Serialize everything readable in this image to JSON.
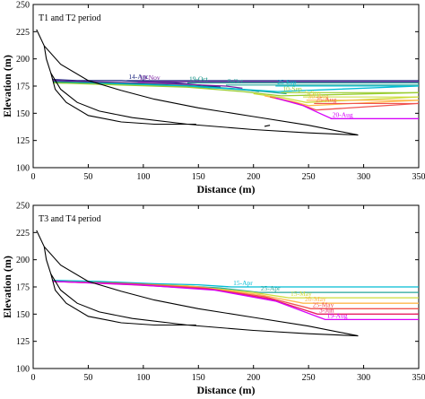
{
  "chart_data": [
    {
      "type": "line",
      "title": "T1 and T2 period",
      "xlabel": "Distance (m)",
      "ylabel": "Elevation (m)",
      "xlim": [
        0,
        350
      ],
      "ylim": [
        100,
        250
      ],
      "xticks": [
        0,
        50,
        100,
        150,
        200,
        250,
        300,
        350
      ],
      "yticks": [
        100,
        125,
        150,
        175,
        200,
        225,
        250
      ],
      "grid": false,
      "legend": "none (inline labels)",
      "profiles": [
        {
          "color": "#000000",
          "points": [
            [
              3,
              227
            ],
            [
              10,
              212
            ],
            [
              25,
              195
            ],
            [
              50,
              180
            ],
            [
              80,
              171
            ],
            [
              110,
              163
            ],
            [
              150,
              155
            ],
            [
              200,
              147
            ],
            [
              250,
              139
            ],
            [
              295,
              130
            ]
          ]
        },
        {
          "color": "#000000",
          "points": [
            [
              10,
              212
            ],
            [
              12,
              200
            ],
            [
              16,
              187
            ],
            [
              25,
              172
            ],
            [
              40,
              160
            ],
            [
              60,
              152
            ],
            [
              90,
              146
            ],
            [
              140,
              140
            ],
            [
              200,
              135
            ],
            [
              250,
              132
            ],
            [
              295,
              130
            ]
          ]
        },
        {
          "color": "#000000",
          "points": [
            [
              16,
              187
            ],
            [
              20,
              172
            ],
            [
              30,
              160
            ],
            [
              50,
              148
            ],
            [
              80,
              142
            ],
            [
              110,
              140
            ],
            [
              148,
              140
            ]
          ]
        },
        {
          "color": "#000000",
          "points": [
            [
              210,
              138
            ],
            [
              215,
              139
            ]
          ]
        }
      ],
      "series": [
        {
          "name": "14-Apr",
          "color": "#1a237e",
          "level": 180,
          "x_from": 85,
          "points": [
            [
              18,
              181
            ],
            [
              40,
              180
            ],
            [
              80,
              180
            ],
            [
              100,
              179
            ],
            [
              130,
              178
            ],
            [
              170,
              174
            ]
          ]
        },
        {
          "name": "19-Nov",
          "color": "#7b1fa2",
          "level": 179,
          "x_from": 95,
          "points": [
            [
              18,
              180
            ],
            [
              50,
              179
            ],
            [
              90,
              178
            ],
            [
              130,
              177
            ],
            [
              175,
              175
            ],
            [
              190,
              173
            ]
          ]
        },
        {
          "name": "19-Oct",
          "color": "#00897b",
          "level": 178,
          "x_from": 140,
          "points": [
            [
              18,
              179
            ],
            [
              60,
              178
            ],
            [
              100,
              177
            ],
            [
              150,
              175
            ],
            [
              190,
              172
            ],
            [
              205,
              170
            ]
          ]
        },
        {
          "name": "9-Oct",
          "color": "#26a69a",
          "level": 176,
          "x_from": 175,
          "points": [
            [
              18,
              178
            ],
            [
              70,
              177
            ],
            [
              120,
              175
            ],
            [
              170,
              173
            ],
            [
              210,
              170
            ],
            [
              230,
              168
            ]
          ]
        },
        {
          "name": "25-Sep",
          "color": "#00bcd4",
          "level": 175,
          "x_from": 220,
          "points": [
            [
              18,
              178
            ],
            [
              80,
              177
            ],
            [
              140,
              175
            ],
            [
              190,
              172
            ],
            [
              222,
              170
            ],
            [
              350,
              175
            ]
          ]
        },
        {
          "name": "10-Sep",
          "color": "#9acd32",
          "level": 169,
          "x_from": 225,
          "points": [
            [
              18,
              178
            ],
            [
              80,
              176
            ],
            [
              140,
              174
            ],
            [
              190,
              170
            ],
            [
              225,
              166
            ],
            [
              350,
              169
            ]
          ]
        },
        {
          "name": "5-Sep",
          "color": "#cddc39",
          "level": 165,
          "x_from": 245,
          "points": [
            [
              200,
              168
            ],
            [
              228,
              164
            ],
            [
              248,
              160
            ],
            [
              350,
              165
            ]
          ]
        },
        {
          "name": "30-Aug",
          "color": "#ffb74d",
          "level": 162,
          "x_from": 248,
          "points": [
            [
              210,
              166
            ],
            [
              235,
              161
            ],
            [
              250,
              157
            ],
            [
              350,
              162
            ]
          ]
        },
        {
          "name": "25-Aug",
          "color": "#ef5350",
          "level": 159,
          "x_from": 255,
          "points": [
            [
              215,
              165
            ],
            [
              240,
              159
            ],
            [
              257,
              153
            ],
            [
              350,
              159
            ]
          ]
        },
        {
          "name": "20-Aug",
          "color": "#d500f9",
          "level": 145,
          "x_from": 270,
          "points": [
            [
              220,
              164
            ],
            [
              245,
              157
            ],
            [
              260,
              150
            ],
            [
              271,
              145
            ],
            [
              350,
              145
            ]
          ]
        }
      ]
    },
    {
      "type": "line",
      "title": "T3 and T4 period",
      "xlabel": "Distance (m)",
      "ylabel": "Elevation (m)",
      "xlim": [
        0,
        350
      ],
      "ylim": [
        100,
        250
      ],
      "xticks": [
        0,
        50,
        100,
        150,
        200,
        250,
        300,
        350
      ],
      "yticks": [
        100,
        125,
        150,
        175,
        200,
        225,
        250
      ],
      "grid": false,
      "legend": "none (inline labels)",
      "profiles": [
        {
          "color": "#000000",
          "points": [
            [
              3,
              227
            ],
            [
              10,
              212
            ],
            [
              25,
              195
            ],
            [
              50,
              180
            ],
            [
              80,
              171
            ],
            [
              110,
              163
            ],
            [
              150,
              155
            ],
            [
              200,
              147
            ],
            [
              250,
              139
            ],
            [
              295,
              130
            ]
          ]
        },
        {
          "color": "#000000",
          "points": [
            [
              10,
              212
            ],
            [
              12,
              200
            ],
            [
              16,
              187
            ],
            [
              25,
              172
            ],
            [
              40,
              160
            ],
            [
              60,
              152
            ],
            [
              90,
              146
            ],
            [
              140,
              140
            ],
            [
              200,
              135
            ],
            [
              250,
              132
            ],
            [
              295,
              130
            ]
          ]
        },
        {
          "color": "#000000",
          "points": [
            [
              16,
              187
            ],
            [
              20,
              172
            ],
            [
              30,
              160
            ],
            [
              50,
              148
            ],
            [
              80,
              142
            ],
            [
              110,
              140
            ],
            [
              148,
              140
            ]
          ]
        }
      ],
      "series": [
        {
          "name": "15-Apr",
          "color": "#00bcd4",
          "level": 175,
          "points": [
            [
              18,
              181
            ],
            [
              60,
              180
            ],
            [
              110,
              178
            ],
            [
              150,
              177
            ],
            [
              180,
              175
            ],
            [
              350,
              175
            ]
          ]
        },
        {
          "name": "25-Apr",
          "color": "#26a69a",
          "level": 170,
          "points": [
            [
              18,
              180
            ],
            [
              70,
              179
            ],
            [
              120,
              177
            ],
            [
              170,
              174
            ],
            [
              205,
              170
            ],
            [
              350,
              170
            ]
          ]
        },
        {
          "name": "15-May",
          "color": "#cddc39",
          "level": 165,
          "points": [
            [
              18,
              180
            ],
            [
              80,
              178
            ],
            [
              140,
              176
            ],
            [
              200,
              170
            ],
            [
              232,
              165
            ],
            [
              350,
              165
            ]
          ]
        },
        {
          "name": "20-May",
          "color": "#ffb74d",
          "level": 160,
          "points": [
            [
              18,
              180
            ],
            [
              85,
              178
            ],
            [
              150,
              175
            ],
            [
              205,
              168
            ],
            [
              245,
              160
            ],
            [
              350,
              160
            ]
          ]
        },
        {
          "name": "25-May",
          "color": "#ef5350",
          "level": 155,
          "points": [
            [
              18,
              180
            ],
            [
              90,
              178
            ],
            [
              155,
              174
            ],
            [
              210,
              166
            ],
            [
              252,
              155
            ],
            [
              350,
              155
            ]
          ]
        },
        {
          "name": "3-Jun",
          "color": "#e91e63",
          "level": 150,
          "points": [
            [
              18,
              180
            ],
            [
              90,
              177
            ],
            [
              160,
              173
            ],
            [
              215,
              164
            ],
            [
              258,
              150
            ],
            [
              350,
              150
            ]
          ]
        },
        {
          "name": "19-Aug",
          "color": "#d500f9",
          "level": 145,
          "points": [
            [
              18,
              180
            ],
            [
              95,
              177
            ],
            [
              165,
              172
            ],
            [
              220,
              162
            ],
            [
              265,
              145
            ],
            [
              350,
              145
            ]
          ]
        }
      ]
    }
  ]
}
